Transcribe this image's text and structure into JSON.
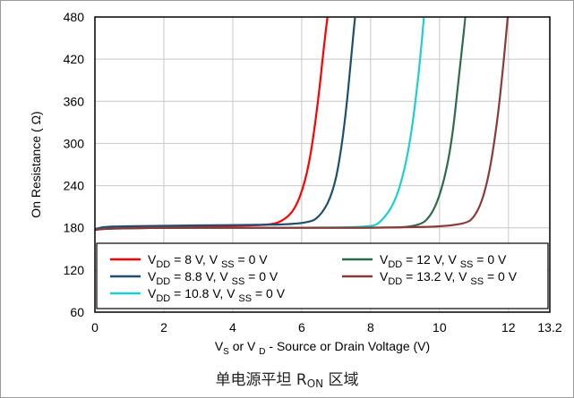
{
  "caption": {
    "text": "单电源平坦 R",
    "sub": "ON",
    "tail": " 区域"
  },
  "chart_data": {
    "type": "line",
    "xlabel": {
      "pre": "V",
      "sub1": "S",
      "mid": " or V ",
      "sub2": "D",
      "post": " - Source or Drain Voltage (V)"
    },
    "ylabel": "On Resistance (  Ω)",
    "xlim": [
      0,
      13.2
    ],
    "ylim": [
      60,
      480
    ],
    "xticks": [
      0,
      2,
      4,
      6,
      8,
      10,
      12,
      13.2
    ],
    "xtick_labels": [
      "0",
      "2",
      "4",
      "6",
      "8",
      "10",
      "12",
      "13.2"
    ],
    "yticks": [
      60,
      120,
      180,
      240,
      300,
      360,
      420,
      480
    ],
    "ytick_labels": [
      "60",
      "120",
      "180",
      "240",
      "300",
      "360",
      "420",
      "480"
    ],
    "grid": true,
    "legend_position": "bottom-inside",
    "series": [
      {
        "name": "V_DD = 8 V, V_SS = 0 V",
        "vdd": "8",
        "color": "#ff0000",
        "x": [
          0,
          0.3,
          2,
          4,
          5,
          5.4,
          5.8,
          6.1,
          6.3,
          6.5,
          6.65,
          6.75
        ],
        "y": [
          177,
          181,
          182,
          183,
          184,
          188,
          205,
          245,
          295,
          370,
          440,
          480
        ]
      },
      {
        "name": "V_DD = 8.8 V, V_SS = 0 V",
        "vdd": "8.8",
        "color": "#1f4e6e",
        "x": [
          0,
          0.3,
          2,
          4,
          6.2,
          6.6,
          6.9,
          7.1,
          7.3,
          7.45,
          7.55
        ],
        "y": [
          178,
          182,
          183,
          184,
          185,
          200,
          230,
          275,
          350,
          430,
          480
        ]
      },
      {
        "name": "V_DD = 10.8 V, V_SS = 0 V",
        "vdd": "10.8",
        "color": "#1ecfcf",
        "x": [
          0,
          0.3,
          2,
          4,
          6,
          8,
          8.3,
          8.7,
          9.0,
          9.2,
          9.4,
          9.55
        ],
        "y": [
          177,
          179,
          180,
          180,
          180,
          181,
          188,
          215,
          265,
          320,
          400,
          480
        ]
      },
      {
        "name": "V_DD = 12 V, V_SS = 0 V",
        "vdd": "12",
        "color": "#2e6b4a",
        "x": [
          0,
          0.3,
          2,
          4,
          6,
          8,
          9.4,
          9.8,
          10.1,
          10.35,
          10.55,
          10.75
        ],
        "y": [
          177,
          179,
          180,
          180,
          180,
          180,
          181,
          200,
          240,
          300,
          390,
          480
        ]
      },
      {
        "name": "V_DD = 13.2 V, V_SS = 0 V",
        "vdd": "13.2",
        "color": "#8b3a3a",
        "x": [
          0,
          0.3,
          2,
          4,
          6,
          8,
          10.7,
          11.1,
          11.4,
          11.65,
          11.85,
          11.98
        ],
        "y": [
          177,
          179,
          180,
          180,
          180,
          180,
          182,
          200,
          245,
          320,
          410,
          480
        ]
      }
    ]
  }
}
